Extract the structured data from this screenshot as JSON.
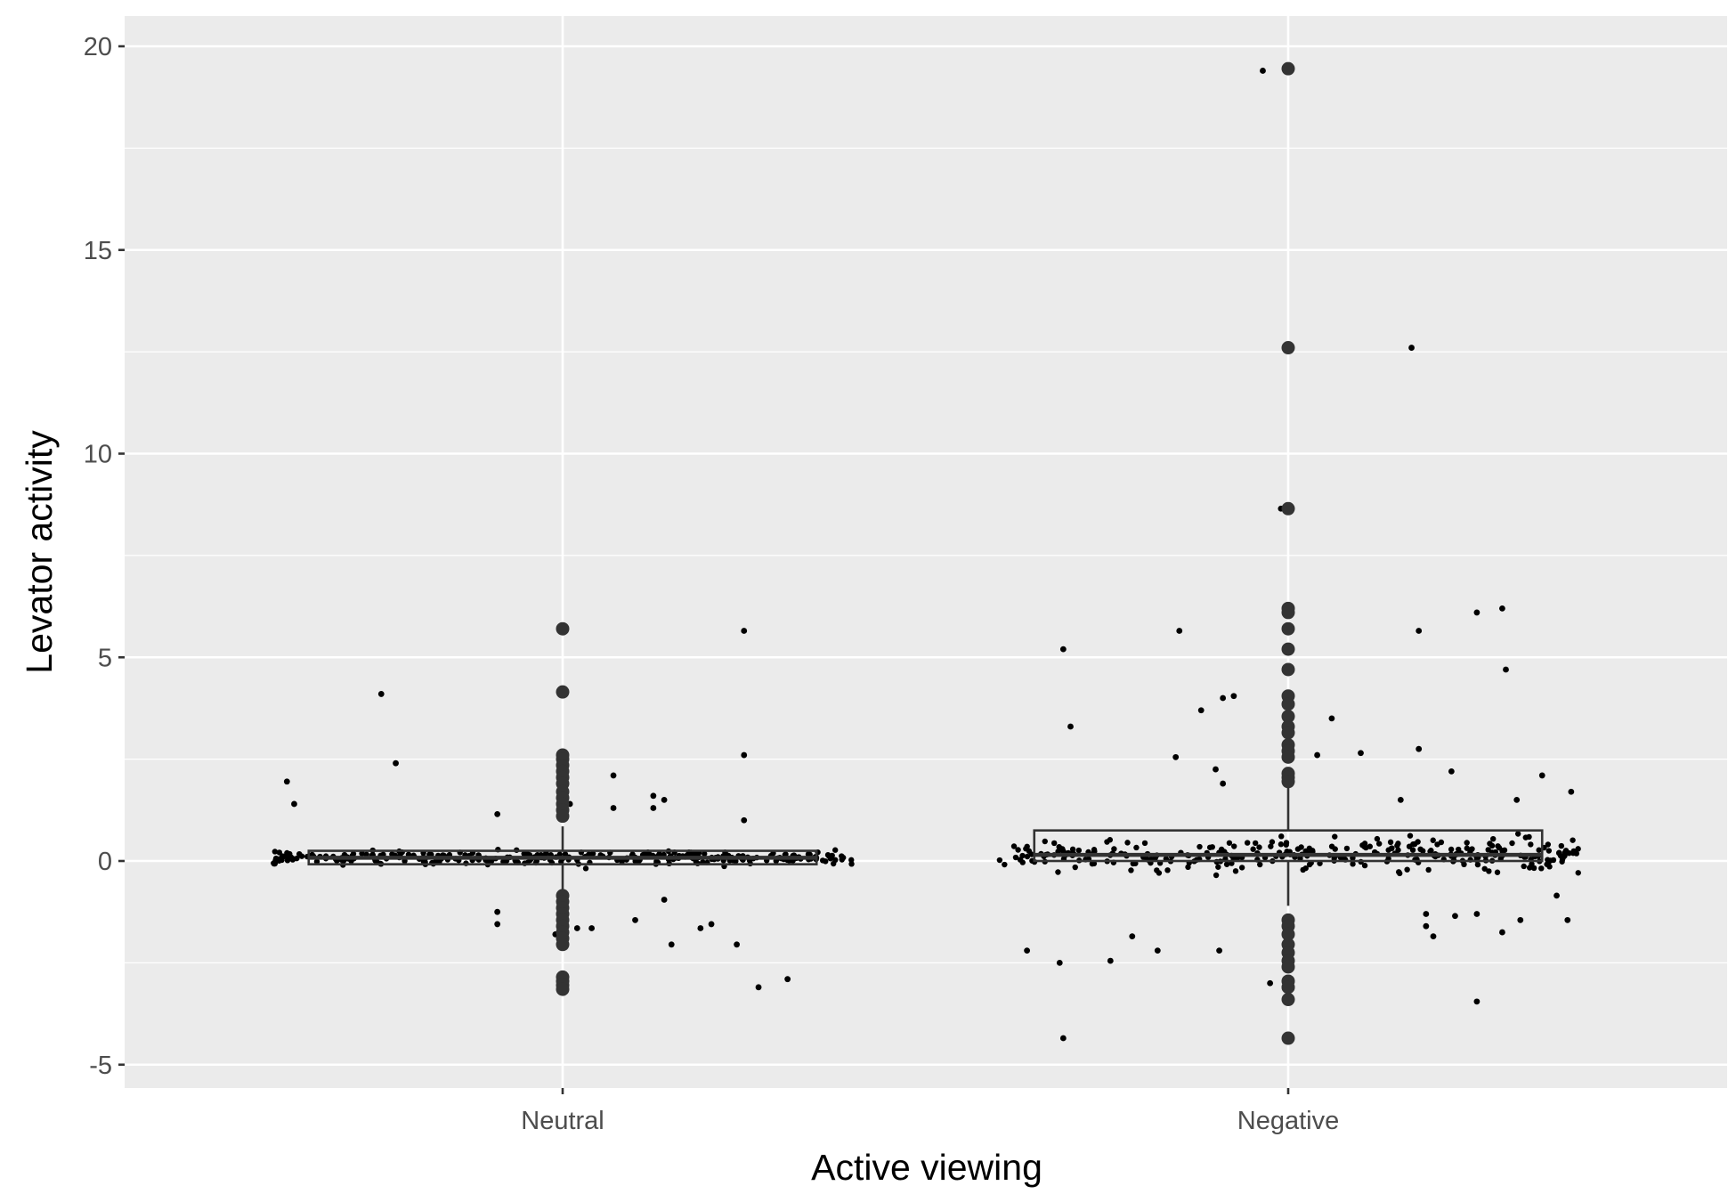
{
  "chart_data": {
    "type": "box+jitter",
    "xlabel": "Active viewing",
    "ylabel": "Levator activity",
    "categories": [
      "Neutral",
      "Negative"
    ],
    "ylim": [
      -5.5,
      20.5
    ],
    "yticks": [
      -5,
      0,
      5,
      10,
      15,
      20
    ],
    "grid": true,
    "panel_color": "#ebebeb",
    "grid_color": "#ffffff",
    "point_color": "#000000",
    "box": [
      {
        "category": "Neutral",
        "q1": -0.08,
        "median": 0.08,
        "q3": 0.25,
        "whisker_low": -0.75,
        "whisker_high": 0.85
      },
      {
        "category": "Negative",
        "q1": 0.0,
        "median": 0.15,
        "q3": 0.75,
        "whisker_low": -1.1,
        "whisker_high": 1.9
      }
    ],
    "outliers": [
      {
        "category": "Neutral",
        "values": [
          5.7,
          4.15,
          2.6,
          2.5,
          2.35,
          2.2,
          2.05,
          1.9,
          1.7,
          1.55,
          1.4,
          1.25,
          1.1,
          -0.85,
          -1.0,
          -1.15,
          -1.3,
          -1.45,
          -1.6,
          -1.75,
          -1.9,
          -2.05,
          -2.85,
          -2.95,
          -3.05,
          -3.15
        ]
      },
      {
        "category": "Negative",
        "values": [
          19.45,
          12.6,
          8.65,
          6.2,
          6.1,
          5.7,
          5.2,
          4.7,
          4.05,
          3.85,
          3.55,
          3.3,
          3.15,
          2.85,
          2.7,
          2.55,
          2.15,
          2.05,
          1.95,
          -1.45,
          -1.6,
          -1.8,
          -2.05,
          -2.25,
          -2.45,
          -2.6,
          -2.95,
          -3.1,
          -3.4,
          -4.35
        ]
      }
    ],
    "jitter_outliers": [
      {
        "category": "Neutral",
        "offset": -0.38,
        "value": 1.95
      },
      {
        "category": "Neutral",
        "offset": -0.37,
        "value": 1.4
      },
      {
        "category": "Neutral",
        "offset": -0.25,
        "value": 4.1
      },
      {
        "category": "Neutral",
        "offset": -0.23,
        "value": 2.4
      },
      {
        "category": "Neutral",
        "offset": -0.09,
        "value": 1.15
      },
      {
        "category": "Neutral",
        "offset": 0.01,
        "value": 1.4
      },
      {
        "category": "Neutral",
        "offset": 0.07,
        "value": 1.3
      },
      {
        "category": "Neutral",
        "offset": 0.07,
        "value": 2.1
      },
      {
        "category": "Neutral",
        "offset": 0.14,
        "value": 1.5
      },
      {
        "category": "Neutral",
        "offset": 0.125,
        "value": 1.3
      },
      {
        "category": "Neutral",
        "offset": 0.125,
        "value": 1.6
      },
      {
        "category": "Neutral",
        "offset": 0.25,
        "value": 5.65
      },
      {
        "category": "Neutral",
        "offset": 0.25,
        "value": 2.6
      },
      {
        "category": "Neutral",
        "offset": 0.25,
        "value": 1.0
      },
      {
        "category": "Neutral",
        "offset": -0.09,
        "value": -1.25
      },
      {
        "category": "Neutral",
        "offset": -0.09,
        "value": -1.55
      },
      {
        "category": "Neutral",
        "offset": 0.02,
        "value": -1.65
      },
      {
        "category": "Neutral",
        "offset": 0.04,
        "value": -1.65
      },
      {
        "category": "Neutral",
        "offset": -0.01,
        "value": -1.8
      },
      {
        "category": "Neutral",
        "offset": 0.1,
        "value": -1.45
      },
      {
        "category": "Neutral",
        "offset": 0.14,
        "value": -0.95
      },
      {
        "category": "Neutral",
        "offset": 0.15,
        "value": -2.05
      },
      {
        "category": "Neutral",
        "offset": 0.19,
        "value": -1.65
      },
      {
        "category": "Neutral",
        "offset": 0.205,
        "value": -1.55
      },
      {
        "category": "Neutral",
        "offset": 0.24,
        "value": -2.05
      },
      {
        "category": "Neutral",
        "offset": 0.27,
        "value": -3.1
      },
      {
        "category": "Neutral",
        "offset": 0.31,
        "value": -2.9
      },
      {
        "category": "Negative",
        "offset": -0.31,
        "value": 5.2
      },
      {
        "category": "Negative",
        "offset": -0.3,
        "value": 3.3
      },
      {
        "category": "Negative",
        "offset": -0.36,
        "value": -2.2
      },
      {
        "category": "Negative",
        "offset": -0.315,
        "value": -2.5
      },
      {
        "category": "Negative",
        "offset": -0.31,
        "value": -4.35
      },
      {
        "category": "Negative",
        "offset": -0.245,
        "value": -2.45
      },
      {
        "category": "Negative",
        "offset": -0.215,
        "value": -1.85
      },
      {
        "category": "Negative",
        "offset": -0.18,
        "value": -2.2
      },
      {
        "category": "Negative",
        "offset": -0.155,
        "value": 2.55
      },
      {
        "category": "Negative",
        "offset": -0.15,
        "value": 5.65
      },
      {
        "category": "Negative",
        "offset": -0.12,
        "value": 3.7
      },
      {
        "category": "Negative",
        "offset": -0.1,
        "value": 2.25
      },
      {
        "category": "Negative",
        "offset": -0.09,
        "value": 1.9
      },
      {
        "category": "Negative",
        "offset": -0.09,
        "value": 4.0
      },
      {
        "category": "Negative",
        "offset": -0.075,
        "value": 4.05
      },
      {
        "category": "Negative",
        "offset": -0.095,
        "value": -2.2
      },
      {
        "category": "Negative",
        "offset": -0.035,
        "value": 19.4
      },
      {
        "category": "Negative",
        "offset": -0.01,
        "value": 8.65
      },
      {
        "category": "Negative",
        "offset": -0.025,
        "value": -3.0
      },
      {
        "category": "Negative",
        "offset": 0.04,
        "value": 2.6
      },
      {
        "category": "Negative",
        "offset": 0.06,
        "value": 3.5
      },
      {
        "category": "Negative",
        "offset": 0.1,
        "value": 2.65
      },
      {
        "category": "Negative",
        "offset": 0.17,
        "value": 12.6
      },
      {
        "category": "Negative",
        "offset": 0.155,
        "value": 1.5
      },
      {
        "category": "Negative",
        "offset": 0.18,
        "value": 2.75
      },
      {
        "category": "Negative",
        "offset": 0.18,
        "value": 5.65
      },
      {
        "category": "Negative",
        "offset": 0.19,
        "value": -1.3
      },
      {
        "category": "Negative",
        "offset": 0.19,
        "value": -1.6
      },
      {
        "category": "Negative",
        "offset": 0.2,
        "value": -1.85
      },
      {
        "category": "Negative",
        "offset": 0.225,
        "value": 2.2
      },
      {
        "category": "Negative",
        "offset": 0.23,
        "value": -1.35
      },
      {
        "category": "Negative",
        "offset": 0.26,
        "value": -3.45
      },
      {
        "category": "Negative",
        "offset": 0.26,
        "value": -1.3
      },
      {
        "category": "Negative",
        "offset": 0.26,
        "value": 6.1
      },
      {
        "category": "Negative",
        "offset": 0.295,
        "value": 6.2
      },
      {
        "category": "Negative",
        "offset": 0.295,
        "value": -1.75
      },
      {
        "category": "Negative",
        "offset": 0.3,
        "value": 4.7
      },
      {
        "category": "Negative",
        "offset": 0.315,
        "value": 1.5
      },
      {
        "category": "Negative",
        "offset": 0.32,
        "value": -1.45
      },
      {
        "category": "Negative",
        "offset": 0.35,
        "value": 2.1
      },
      {
        "category": "Negative",
        "offset": 0.39,
        "value": 1.7
      },
      {
        "category": "Negative",
        "offset": 0.385,
        "value": -1.45
      },
      {
        "category": "Negative",
        "offset": 0.37,
        "value": -0.85
      }
    ]
  }
}
